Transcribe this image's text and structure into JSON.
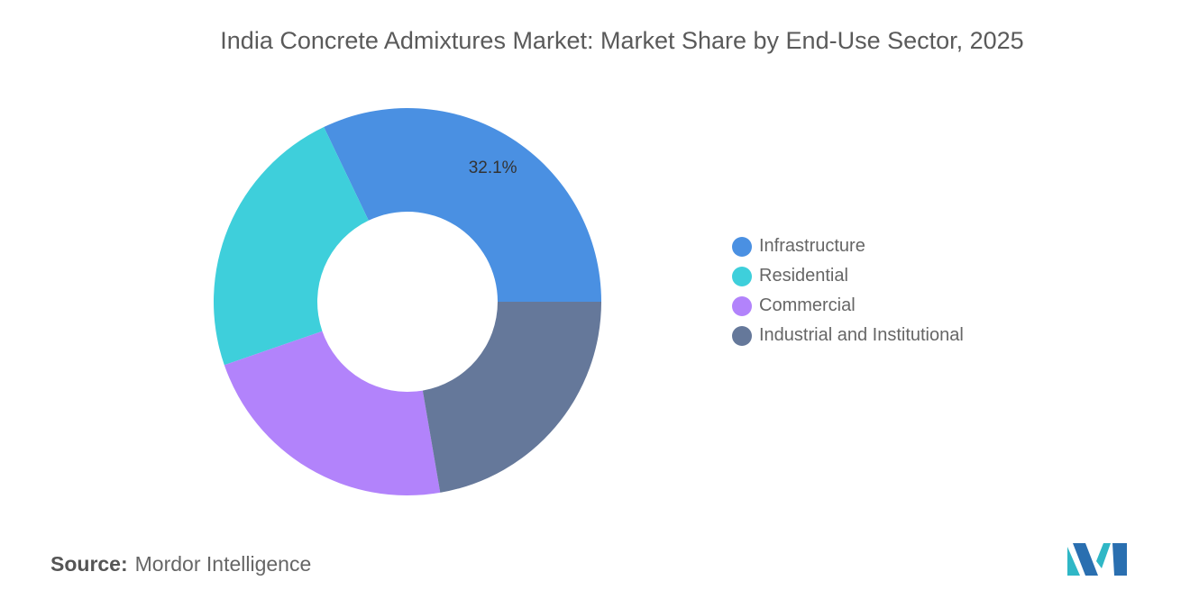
{
  "title": "India Concrete Admixtures Market: Market Share by End-Use Sector, 2025",
  "source_label": "Source:",
  "source_value": "Mordor Intelligence",
  "chart_data": {
    "type": "pie",
    "subtype": "donut",
    "title": "India Concrete Admixtures Market: Market Share by End-Use Sector, 2025",
    "categories": [
      "Infrastructure",
      "Residential",
      "Commercial",
      "Industrial and Institutional"
    ],
    "values": [
      32.1,
      23.2,
      22.4,
      22.3
    ],
    "colors": [
      "#4a90e2",
      "#3ecfdb",
      "#b283fb",
      "#65789a"
    ],
    "data_labels": [
      "32.1%",
      null,
      null,
      null
    ],
    "legend_placement": "right"
  }
}
